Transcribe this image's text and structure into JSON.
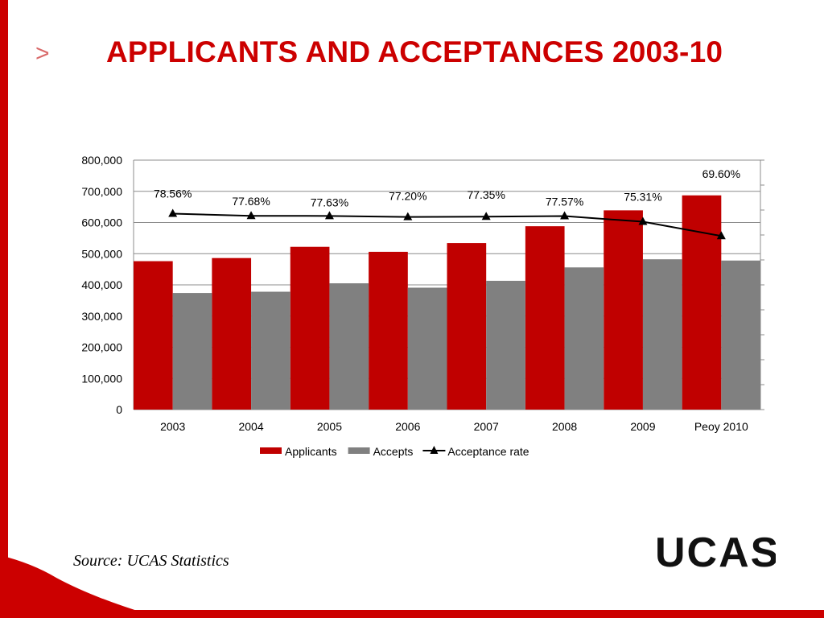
{
  "page": {
    "chevron": ">",
    "title": "APPLICANTS AND ACCEPTANCES 2003-10",
    "source": "Source: UCAS Statistics",
    "logo_text": "UCAS",
    "brand_color": "#cc0000"
  },
  "chart_data": {
    "type": "bar",
    "categories": [
      "2003",
      "2004",
      "2005",
      "2006",
      "2007",
      "2008",
      "2009",
      "Peoy 2010"
    ],
    "series": [
      {
        "name": "Applicants",
        "type": "bar",
        "color": "#c00000",
        "values": [
          476000,
          486000,
          522000,
          506000,
          534000,
          588000,
          639000,
          687000
        ]
      },
      {
        "name": "Accepts",
        "type": "bar",
        "color": "#808080",
        "values": [
          374000,
          378000,
          405000,
          391000,
          413000,
          456000,
          482000,
          478000
        ]
      },
      {
        "name": "Acceptance rate",
        "type": "line",
        "axis": "secondary",
        "color": "#000000",
        "marker": "triangle",
        "values": [
          78.56,
          77.68,
          77.63,
          77.2,
          77.35,
          77.57,
          75.31,
          69.6
        ],
        "labels": [
          "78.56%",
          "77.68%",
          "77.63%",
          "77.20%",
          "77.35%",
          "77.57%",
          "75.31%",
          "69.60%"
        ]
      }
    ],
    "y_ticks": [
      "0",
      "100,000",
      "200,000",
      "300,000",
      "400,000",
      "500,000",
      "600,000",
      "700,000",
      "800,000"
    ],
    "ylim": [
      0,
      800000
    ],
    "y2lim": [
      0,
      100
    ],
    "grid": true,
    "legend": "bottom",
    "title": "",
    "xlabel": "",
    "ylabel": ""
  }
}
